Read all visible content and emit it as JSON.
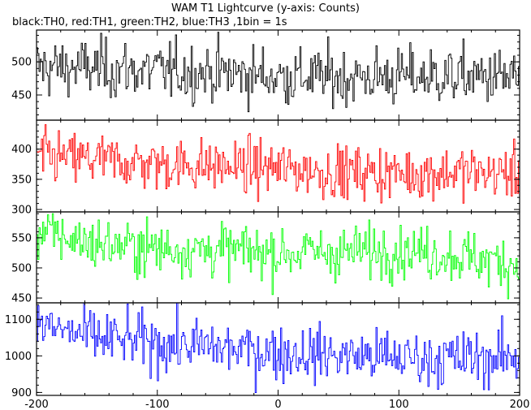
{
  "chart_data": {
    "type": "line",
    "title": "WAM T1 Lightcurve (y-axis: Counts)",
    "subtitle": "black:TH0, red:TH1, green:TH2, blue:TH3 ,1bin = 1s",
    "xlim": [
      -200,
      200
    ],
    "x_ticks": [
      -200,
      -100,
      0,
      100,
      200
    ],
    "series": [
      {
        "name": "TH0",
        "color": "#000000",
        "ylim": [
          412,
          548
        ],
        "y_ticks": [
          450,
          500
        ],
        "noise": 22,
        "trend": [
          [
            -200,
            492
          ],
          [
            -150,
            490
          ],
          [
            -100,
            486
          ],
          [
            -50,
            484
          ],
          [
            0,
            478
          ],
          [
            50,
            477
          ],
          [
            100,
            478
          ],
          [
            150,
            478
          ],
          [
            200,
            476
          ]
        ]
      },
      {
        "name": "TH1",
        "color": "#ff0000",
        "ylim": [
          296,
          448
        ],
        "y_ticks": [
          300,
          350,
          400
        ],
        "noise": 22,
        "trend": [
          [
            -200,
            388
          ],
          [
            -150,
            382
          ],
          [
            -100,
            375
          ],
          [
            -50,
            372
          ],
          [
            0,
            368
          ],
          [
            50,
            362
          ],
          [
            100,
            360
          ],
          [
            150,
            362
          ],
          [
            200,
            360
          ]
        ]
      },
      {
        "name": "TH2",
        "color": "#00ff00",
        "ylim": [
          442,
          593
        ],
        "y_ticks": [
          450,
          500,
          550
        ],
        "noise": 22,
        "trend": [
          [
            -200,
            560
          ],
          [
            -150,
            540
          ],
          [
            -100,
            532
          ],
          [
            -50,
            530
          ],
          [
            0,
            525
          ],
          [
            50,
            526
          ],
          [
            100,
            530
          ],
          [
            150,
            520
          ],
          [
            200,
            505
          ]
        ]
      },
      {
        "name": "TH3",
        "color": "#0000ff",
        "ylim": [
          892,
          1145
        ],
        "y_ticks": [
          900,
          1000,
          1100
        ],
        "noise": 38,
        "trend": [
          [
            -200,
            1085
          ],
          [
            -150,
            1048
          ],
          [
            -100,
            1035
          ],
          [
            -50,
            1022
          ],
          [
            0,
            1010
          ],
          [
            50,
            1002
          ],
          [
            100,
            995
          ],
          [
            150,
            992
          ],
          [
            200,
            995
          ]
        ]
      }
    ]
  }
}
